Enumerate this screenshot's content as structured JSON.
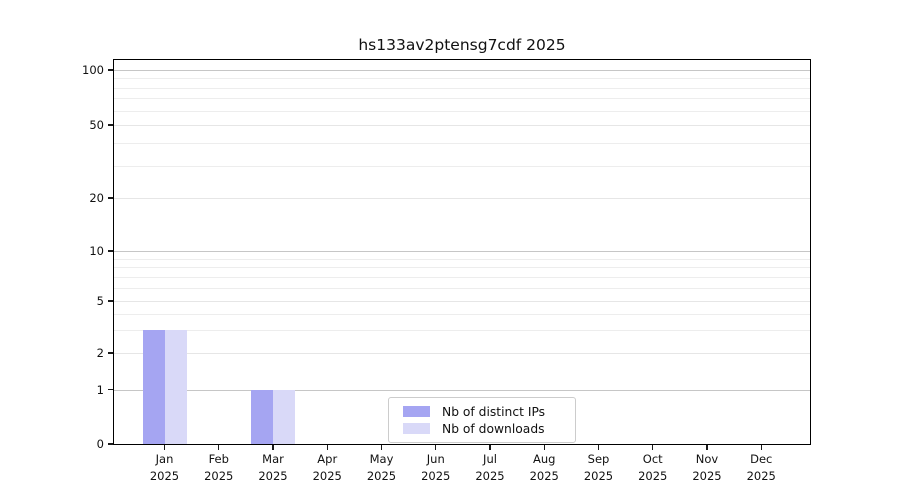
{
  "figure": {
    "background": "#ffffff"
  },
  "chart_data": {
    "type": "bar",
    "title": "hs133av2ptensg7cdf 2025",
    "year_label": "2025",
    "categories": [
      "Jan",
      "Feb",
      "Mar",
      "Apr",
      "May",
      "Jun",
      "Jul",
      "Aug",
      "Sep",
      "Oct",
      "Nov",
      "Dec"
    ],
    "series": [
      {
        "name": "Nb of distinct IPs",
        "color": "#a5a5f2",
        "values": [
          3,
          0,
          1,
          0,
          0,
          0,
          0,
          0,
          0,
          0,
          0,
          0
        ]
      },
      {
        "name": "Nb of downloads",
        "color": "#d9d9f8",
        "values": [
          3,
          0,
          1,
          0,
          0,
          0,
          0,
          0,
          0,
          0,
          0,
          0
        ]
      }
    ],
    "xlabel": "",
    "ylabel": "",
    "y_ticks": [
      0,
      1,
      2,
      5,
      10,
      20,
      50,
      100
    ],
    "y_minor_ticks": [
      3,
      4,
      6,
      7,
      8,
      9,
      30,
      40,
      60,
      70,
      80,
      90
    ],
    "ylim": [
      0,
      115
    ],
    "scale": "log-like",
    "grid": true,
    "legend_position": "lower-center"
  },
  "colors": {
    "grid_major": "#c6c6c6",
    "grid_labeled": "#e6e6e6",
    "grid_minor": "#ededed",
    "axis": "#000000",
    "legend_border": "#cccccc",
    "text": "#111111"
  }
}
